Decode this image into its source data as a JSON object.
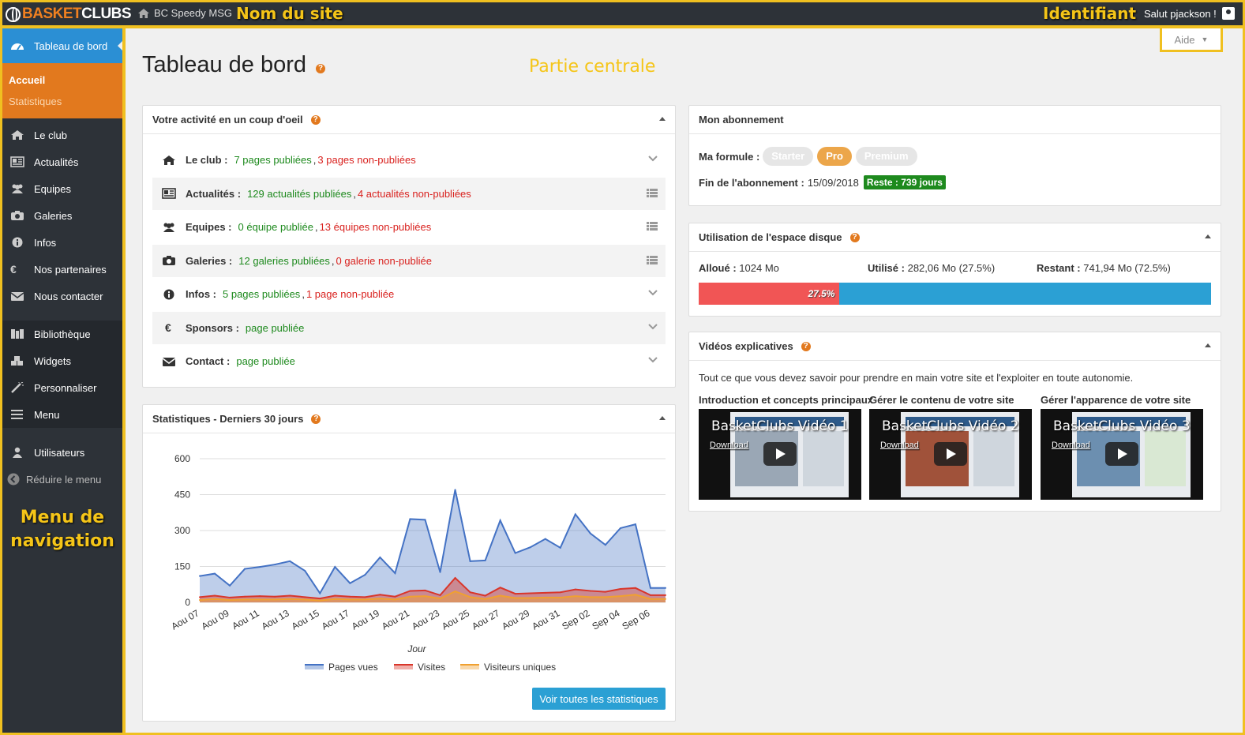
{
  "topbar": {
    "logo_part1": "BASKET",
    "logo_part2": "CLUBS",
    "site_name": "BC Speedy MSG",
    "annotation_site": "Nom du site",
    "annotation_ident": "Identifiant",
    "greeting": "Salut pjackson !"
  },
  "sidebar": {
    "active": "Tableau de bord",
    "sub_items": [
      "Accueil",
      "Statistiques"
    ],
    "items": [
      {
        "label": "Le club",
        "icon": "home-icon"
      },
      {
        "label": "Actualités",
        "icon": "newspaper-icon"
      },
      {
        "label": "Equipes",
        "icon": "users-icon"
      },
      {
        "label": "Galeries",
        "icon": "camera-icon"
      },
      {
        "label": "Infos",
        "icon": "info-icon"
      },
      {
        "label": "Nos partenaires",
        "icon": "euro-icon"
      },
      {
        "label": "Nous contacter",
        "icon": "envelope-icon"
      }
    ],
    "items2": [
      {
        "label": "Bibliothèque",
        "icon": "library-icon"
      },
      {
        "label": "Widgets",
        "icon": "cubes-icon"
      },
      {
        "label": "Personnaliser",
        "icon": "magic-wand-icon"
      },
      {
        "label": "Menu",
        "icon": "menu-icon"
      }
    ],
    "users": "Utilisateurs",
    "reduce": "Réduire le menu",
    "annotation_line1": "Menu de",
    "annotation_line2": "navigation"
  },
  "main": {
    "title": "Tableau de bord",
    "annotation_center": "Partie centrale",
    "help_button": "Aide"
  },
  "activity": {
    "title": "Votre activité en un coup d'oeil",
    "rows": [
      {
        "label": "Le club :",
        "published": "7 pages publiées",
        "sep": ",",
        "unpublished": "3 pages non-publiées",
        "icon": "home-icon",
        "action": "chevron"
      },
      {
        "label": "Actualités :",
        "published": "129 actualités publiées",
        "sep": ",",
        "unpublished": "4 actualités non-publiées",
        "icon": "newspaper-icon",
        "action": "list"
      },
      {
        "label": "Equipes :",
        "published": "0 équipe publiée",
        "sep": ",",
        "unpublished": "13 équipes non-publiées",
        "icon": "users-icon",
        "action": "list"
      },
      {
        "label": "Galeries :",
        "published": "12 galeries publiées",
        "sep": ",",
        "unpublished": "0 galerie non-publiée",
        "icon": "camera-icon",
        "action": "list"
      },
      {
        "label": "Infos :",
        "published": "5 pages publiées",
        "sep": ",",
        "unpublished": "1 page non-publiée",
        "icon": "info-icon",
        "action": "chevron"
      },
      {
        "label": "Sponsors :",
        "published": "page publiée",
        "sep": "",
        "unpublished": "",
        "icon": "euro-icon",
        "action": "chevron"
      },
      {
        "label": "Contact :",
        "published": "page publiée",
        "sep": "",
        "unpublished": "",
        "icon": "envelope-icon",
        "action": "chevron"
      }
    ]
  },
  "subscription": {
    "title": "Mon abonnement",
    "formula_label": "Ma formule :",
    "plans": [
      "Starter",
      "Pro",
      "Premium"
    ],
    "selected_plan": "Pro",
    "end_label": "Fin de l'abonnement :",
    "end_date": "15/09/2018",
    "remaining": "Reste : 739 jours"
  },
  "disk": {
    "title": "Utilisation de l'espace disque",
    "allocated_label": "Alloué :",
    "allocated": "1024 Mo",
    "used_label": "Utilisé :",
    "used": "282,06 Mo (27.5%)",
    "remaining_label": "Restant :",
    "remaining": "741,94 Mo (72.5%)",
    "used_fraction": 0.275,
    "bar_text": "27.5%",
    "used_color": "#f15555",
    "free_color": "#2ba0d4"
  },
  "videos": {
    "title": "Vidéos explicatives",
    "intro": "Tout ce que vous devez savoir pour prendre en main votre site et l'exploiter en toute autonomie.",
    "items": [
      {
        "caption": "Introduction et concepts principaux",
        "title": "BasketClubs Vidéo 1",
        "download": "Download"
      },
      {
        "caption": "Gérer le contenu de votre site",
        "title": "BasketClubs Vidéo 2",
        "download": "Download"
      },
      {
        "caption": "Gérer l'apparence de votre site",
        "title": "BasketClubs Vidéo 3",
        "download": "Download"
      }
    ]
  },
  "stats": {
    "title": "Statistiques - Derniers 30 jours",
    "button": "Voir toutes les statistiques"
  },
  "chart_data": {
    "type": "area",
    "xlabel": "Jour",
    "ylabel": "",
    "ylim": [
      0,
      600
    ],
    "yticks": [
      0,
      150,
      300,
      450,
      600
    ],
    "x_tick_labels": [
      "Aou 07",
      "Aou 09",
      "Aou 11",
      "Aou 13",
      "Aou 15",
      "Aou 17",
      "Aou 19",
      "Aou 21",
      "Aou 23",
      "Aou 25",
      "Aou 27",
      "Aou 29",
      "Aou 31",
      "Sep 02",
      "Sep 04",
      "Sep 06"
    ],
    "x": [
      "Aou 07",
      "Aou 08",
      "Aou 09",
      "Aou 10",
      "Aou 11",
      "Aou 12",
      "Aou 13",
      "Aou 14",
      "Aou 15",
      "Aou 16",
      "Aou 17",
      "Aou 18",
      "Aou 19",
      "Aou 20",
      "Aou 21",
      "Aou 22",
      "Aou 23",
      "Aou 24",
      "Aou 25",
      "Aou 26",
      "Aou 27",
      "Aou 28",
      "Aou 29",
      "Aou 30",
      "Aou 31",
      "Sep 01",
      "Sep 02",
      "Sep 03",
      "Sep 04",
      "Sep 05",
      "Sep 06",
      "Sep 07"
    ],
    "series": [
      {
        "name": "Pages vues",
        "color": "#4472c4",
        "values": [
          110,
          120,
          70,
          140,
          148,
          158,
          172,
          132,
          38,
          148,
          80,
          115,
          188,
          122,
          348,
          345,
          126,
          470,
          172,
          175,
          342,
          206,
          230,
          265,
          228,
          368,
          288,
          240,
          310,
          326,
          60,
          60
        ]
      },
      {
        "name": "Visites",
        "color": "#d9362a",
        "values": [
          22,
          28,
          20,
          24,
          26,
          24,
          28,
          22,
          16,
          28,
          24,
          22,
          32,
          24,
          48,
          50,
          30,
          102,
          42,
          28,
          62,
          36,
          38,
          40,
          42,
          54,
          48,
          44,
          56,
          60,
          30,
          30
        ]
      },
      {
        "name": "Visiteurs uniques",
        "color": "#f0a030",
        "values": [
          10,
          14,
          10,
          12,
          12,
          12,
          14,
          12,
          8,
          14,
          12,
          12,
          16,
          12,
          24,
          26,
          16,
          46,
          22,
          14,
          28,
          18,
          18,
          20,
          20,
          26,
          22,
          22,
          26,
          32,
          14,
          14
        ]
      }
    ],
    "legend_position": "bottom",
    "grid": true
  }
}
